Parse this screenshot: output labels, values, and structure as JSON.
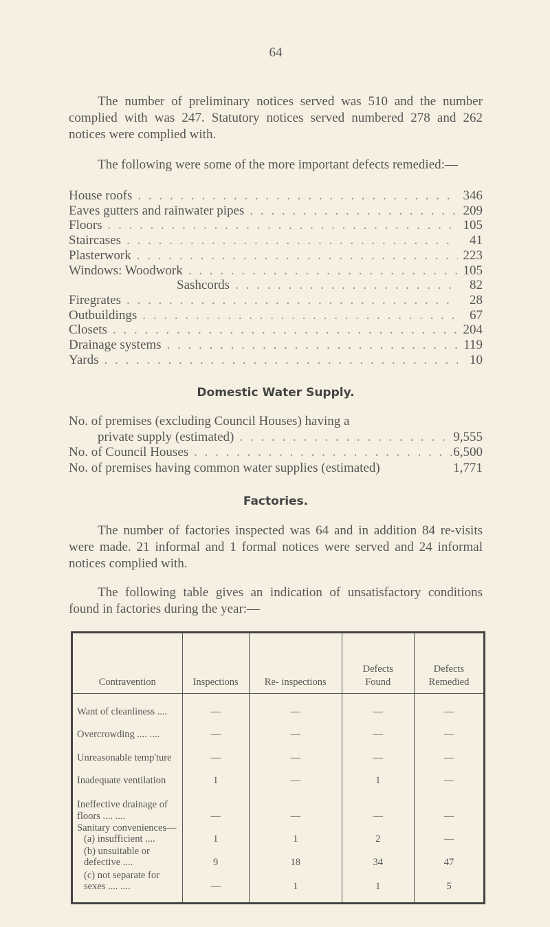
{
  "page_number": "64",
  "para1": "The number of preliminary notices served was 510 and the number complied with was 247. Statutory notices served numbered 278 and 262 notices were complied with.",
  "para2": "The following were some of the more important defects remedied:—",
  "defects": [
    {
      "label": "House roofs",
      "value": "346"
    },
    {
      "label": "Eaves gutters and rainwater pipes",
      "value": "209"
    },
    {
      "label": "Floors",
      "value": "105"
    },
    {
      "label": "Staircases",
      "value": "41"
    },
    {
      "label": "Plasterwork",
      "value": "223"
    },
    {
      "label": "Windows: Woodwork",
      "value": "105"
    },
    {
      "label": "Sashcords",
      "value": "82"
    },
    {
      "label": "Firegrates",
      "value": "28"
    },
    {
      "label": "Outbuildings",
      "value": "67"
    },
    {
      "label": "Closets",
      "value": "204"
    },
    {
      "label": "Drainage systems",
      "value": "119"
    },
    {
      "label": "Yards",
      "value": "10"
    }
  ],
  "water_heading": "Domestic Water Supply.",
  "water": [
    {
      "label": "No. of premises (excluding Council Houses) having a",
      "cont": "private supply (estimated)",
      "value": "9,555"
    },
    {
      "label": "No. of Council Houses",
      "value": "6,500"
    },
    {
      "label": "No. of premises having common water supplies (estimated)",
      "value": "1,771"
    }
  ],
  "factories_heading": "Factories.",
  "para3": "The number of factories inspected was 64 and in addition 84 re-visits were made. 21 informal and 1 formal notices were served and 24 informal notices complied with.",
  "para4": "The following table gives an indication of unsatisfactory conditions found in factories during the year:—",
  "table": {
    "headers": [
      "Contravention",
      "Inspections",
      "Re- inspections",
      "Defects Found",
      "Defects Remedied"
    ],
    "rows": [
      {
        "label": "Want of cleanliness ....",
        "cells": [
          "—",
          "—",
          "—",
          "—"
        ]
      },
      {
        "label": "Overcrowding .... ....",
        "cells": [
          "—",
          "—",
          "—",
          "—"
        ]
      },
      {
        "label": "Unreasonable temp'ture",
        "cells": [
          "—",
          "—",
          "—",
          "—"
        ]
      },
      {
        "label": "Inadequate ventilation",
        "cells": [
          "1",
          "—",
          "1",
          "—"
        ]
      },
      {
        "label": "Ineffective drainage of floors .... ....",
        "cells": [
          "—",
          "—",
          "—",
          "—"
        ]
      },
      {
        "label": "Sanitary conveniences—",
        "cells": [
          "",
          "",
          "",
          ""
        ]
      },
      {
        "label": "(a) insufficient ....",
        "cells": [
          "1",
          "1",
          "2",
          "—"
        ]
      },
      {
        "label": "(b) unsuitable or defective ....",
        "cells": [
          "9",
          "18",
          "34",
          "47"
        ]
      },
      {
        "label": "(c) not separate for sexes .... ....",
        "cells": [
          "—",
          "1",
          "1",
          "5"
        ]
      }
    ]
  }
}
